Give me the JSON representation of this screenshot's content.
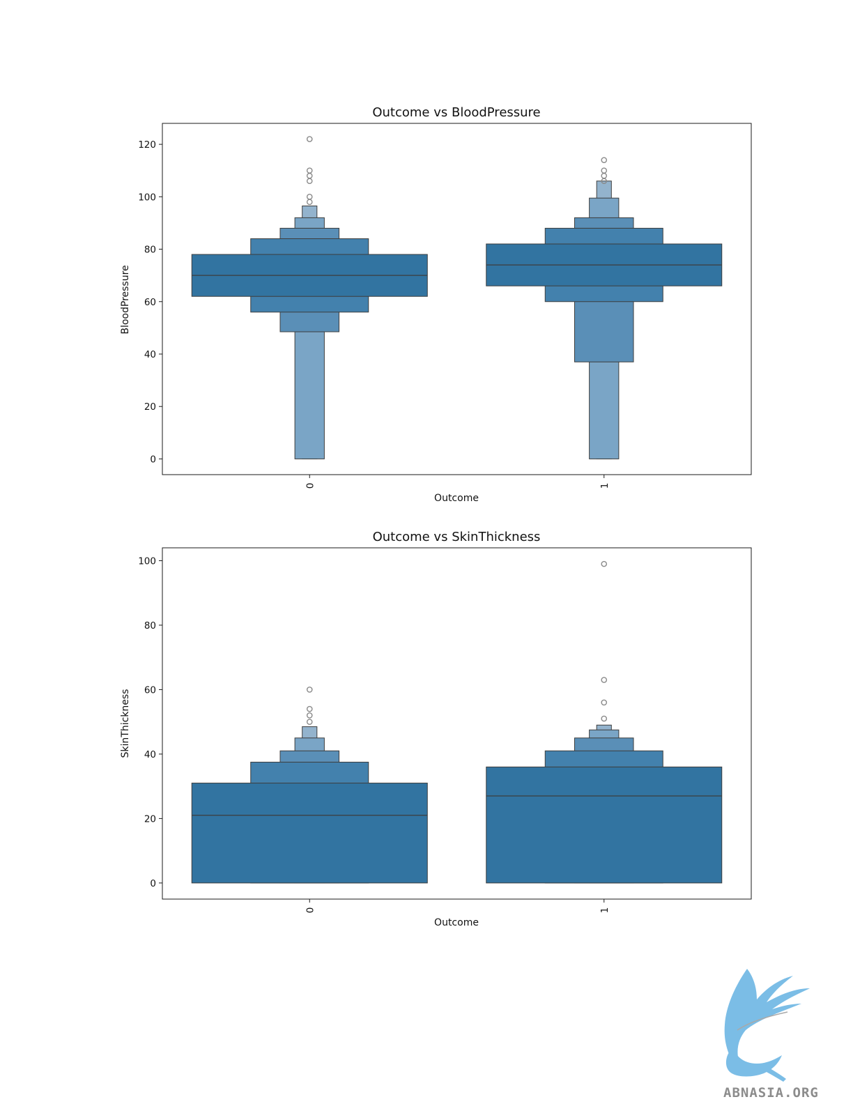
{
  "colors": {
    "box": "#3274a1",
    "edge": "#3d3d3d",
    "frame": "#1a1a1a",
    "outlier": "#8a8a8a"
  },
  "watermark": {
    "text": "ABNASIA.ORG",
    "icon": "griffin-logo-icon"
  },
  "chart_data": [
    {
      "type": "boxen",
      "title": "Outcome vs BloodPressure",
      "xlabel": "Outcome",
      "ylabel": "BloodPressure",
      "categories": [
        "0",
        "1"
      ],
      "ylim": [
        -6,
        128
      ],
      "yticks": [
        0,
        20,
        40,
        60,
        80,
        100,
        120
      ],
      "grid": false,
      "boxes": [
        {
          "category": "0",
          "median": 70,
          "levels": [
            {
              "low": 62,
              "high": 78
            },
            {
              "low": 56,
              "high": 84
            },
            {
              "low": 48.5,
              "high": 88
            },
            {
              "low": 0,
              "high": 92
            },
            {
              "low": 0,
              "high": 96.5
            }
          ],
          "outliers": [
            122,
            110,
            108,
            106,
            100,
            98
          ]
        },
        {
          "category": "1",
          "median": 74,
          "levels": [
            {
              "low": 66,
              "high": 82
            },
            {
              "low": 60,
              "high": 88
            },
            {
              "low": 37,
              "high": 92
            },
            {
              "low": 0,
              "high": 99.5
            },
            {
              "low": 0,
              "high": 106
            }
          ],
          "outliers": [
            114,
            110,
            108,
            106
          ]
        }
      ]
    },
    {
      "type": "boxen",
      "title": "Outcome vs SkinThickness",
      "xlabel": "Outcome",
      "ylabel": "SkinThickness",
      "categories": [
        "0",
        "1"
      ],
      "ylim": [
        -5,
        104
      ],
      "yticks": [
        0,
        20,
        40,
        60,
        80,
        100
      ],
      "grid": false,
      "boxes": [
        {
          "category": "0",
          "median": 21,
          "levels": [
            {
              "low": 0,
              "high": 31
            },
            {
              "low": 0,
              "high": 37.5
            },
            {
              "low": 0,
              "high": 41
            },
            {
              "low": 0,
              "high": 45
            },
            {
              "low": 0,
              "high": 48.5
            }
          ],
          "outliers": [
            60,
            54,
            52,
            50
          ]
        },
        {
          "category": "1",
          "median": 27,
          "levels": [
            {
              "low": 0,
              "high": 36
            },
            {
              "low": 0,
              "high": 41
            },
            {
              "low": 0,
              "high": 45
            },
            {
              "low": 0,
              "high": 47.5
            },
            {
              "low": 0,
              "high": 49
            }
          ],
          "outliers": [
            99,
            63,
            56,
            51
          ]
        }
      ]
    }
  ]
}
